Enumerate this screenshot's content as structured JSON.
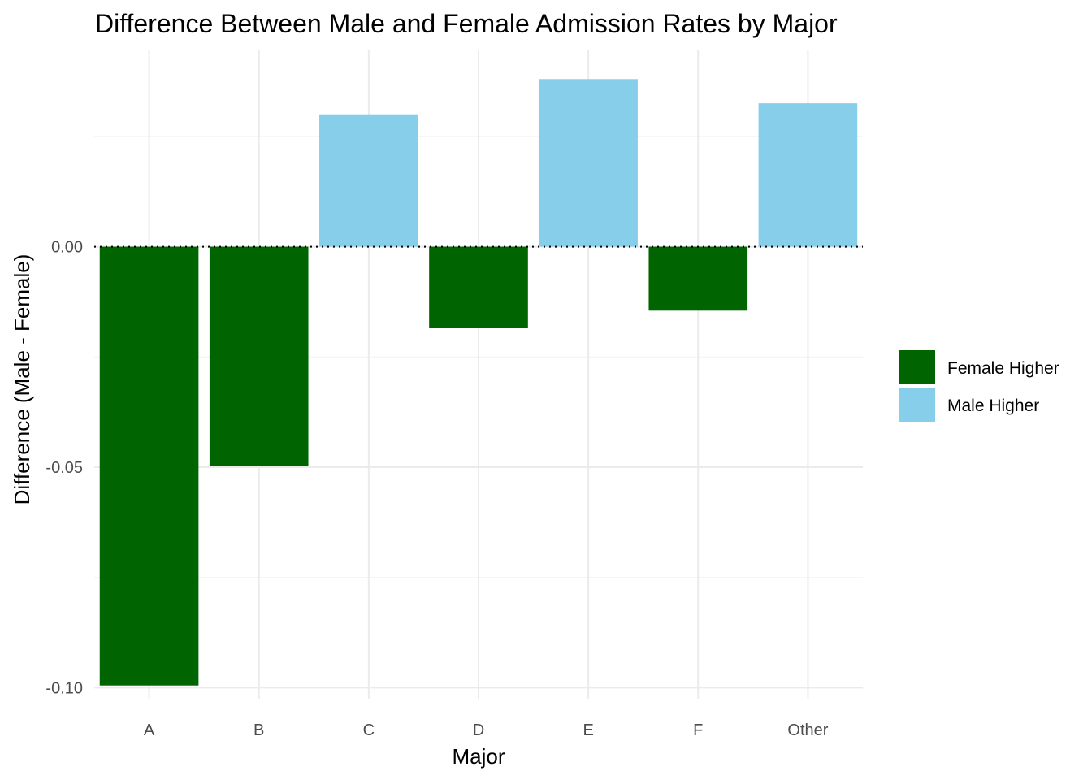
{
  "chart_data": {
    "type": "bar",
    "title": "Difference Between Male and Female Admission Rates by Major",
    "xlabel": "Major",
    "ylabel": "Difference (Male - Female)",
    "categories": [
      "A",
      "B",
      "C",
      "D",
      "E",
      "F",
      "Other"
    ],
    "values": [
      -0.0995,
      -0.0498,
      0.03,
      -0.0185,
      0.038,
      -0.0145,
      0.0325
    ],
    "groups": [
      "Female Higher",
      "Female Higher",
      "Male Higher",
      "Female Higher",
      "Male Higher",
      "Female Higher",
      "Male Higher"
    ],
    "ylim": [
      -0.1025,
      0.0445
    ],
    "yticks": [
      -0.1,
      -0.05,
      0.0
    ],
    "ytick_labels": [
      "-0.10",
      "-0.05",
      "0.00"
    ],
    "grid": true,
    "reference_line": 0,
    "legend": {
      "position": "right",
      "entries": [
        {
          "label": "Female Higher",
          "color": "#006400"
        },
        {
          "label": "Male Higher",
          "color": "#87CEEB"
        }
      ]
    }
  }
}
